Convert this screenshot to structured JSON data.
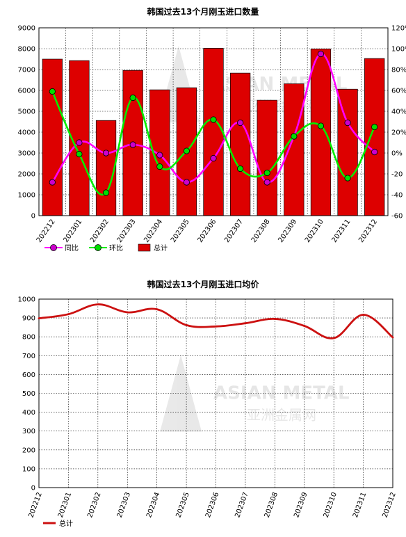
{
  "chart_data": [
    {
      "type": "bar",
      "title": "韩国过去13个月刚玉进口数量",
      "categories": [
        "202212",
        "202301",
        "202302",
        "202303",
        "202304",
        "202305",
        "202306",
        "202307",
        "202308",
        "202309",
        "202310",
        "202311",
        "202312"
      ],
      "ylim": [
        0,
        9000
      ],
      "y2lim": [
        -60,
        120
      ],
      "yticks": [
        0,
        1000,
        2000,
        3000,
        4000,
        5000,
        6000,
        7000,
        8000,
        9000
      ],
      "y2ticks": [
        "-60",
        "-40",
        "-20",
        "0%",
        "20%",
        "40%",
        "60%",
        "80%",
        "100%",
        "120%"
      ],
      "grid": true,
      "legend_position": "bottom-left",
      "colors": {
        "bar": "#dd0000",
        "yoy": "#ff00ff",
        "mom": "#00ee00",
        "marker_yoy": "#cc00cc",
        "marker_mom": "#00dd00"
      },
      "series": [
        {
          "name": "总计",
          "kind": "bar",
          "axis": "left",
          "values": [
            7500,
            7430,
            4560,
            6960,
            6030,
            6130,
            8020,
            6830,
            5530,
            6320,
            7990,
            6060,
            7530
          ]
        },
        {
          "name": "同比",
          "kind": "line",
          "axis": "right",
          "values": [
            -28,
            10,
            0,
            8,
            -2,
            -28,
            -5,
            29,
            -28,
            16,
            95,
            29,
            1
          ]
        },
        {
          "name": "环比",
          "kind": "line",
          "axis": "right",
          "values": [
            59,
            -1,
            -38,
            53,
            -13,
            2,
            32,
            -15,
            -19,
            16,
            26,
            -24,
            25
          ]
        }
      ]
    },
    {
      "type": "line",
      "title": "韩国过去13个月刚玉进口均价",
      "categories": [
        "202212",
        "202301",
        "202302",
        "202303",
        "202304",
        "202305",
        "202306",
        "202307",
        "202308",
        "202309",
        "202310",
        "202311",
        "202312"
      ],
      "ylim": [
        0,
        1000
      ],
      "yticks": [
        0,
        100,
        200,
        300,
        400,
        500,
        600,
        700,
        800,
        900,
        1000
      ],
      "grid": true,
      "legend_position": "bottom-left",
      "colors": {
        "line": "#cc1111"
      },
      "series": [
        {
          "name": "总计",
          "values": [
            898,
            920,
            972,
            930,
            946,
            862,
            855,
            872,
            895,
            858,
            793,
            917,
            797
          ]
        }
      ]
    }
  ],
  "watermark": {
    "brand": "ASIAN METAL",
    "brand_cn": "亚洲金属网"
  }
}
